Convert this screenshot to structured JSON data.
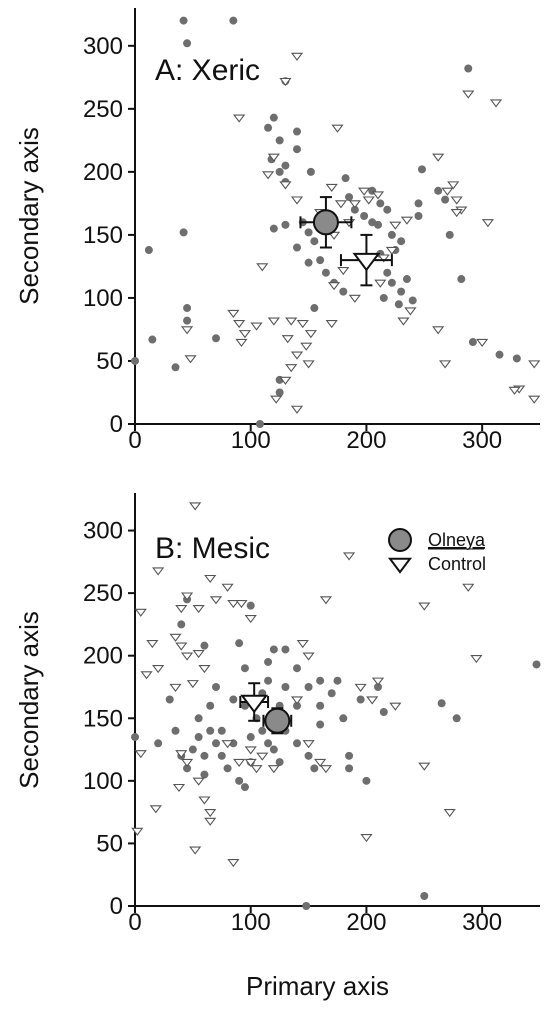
{
  "chart_data": [
    {
      "type": "scatter",
      "title": "A: Xeric",
      "xlabel": "",
      "ylabel": "Secondary axis",
      "xlim": [
        0,
        350
      ],
      "ylim": [
        0,
        330
      ],
      "xticks": [
        0,
        100,
        200,
        300
      ],
      "yticks": [
        0,
        50,
        100,
        150,
        200,
        250,
        300
      ],
      "grid": false,
      "series": [
        {
          "marker": "filled-circle",
          "color": "#6e6e6e",
          "points": [
            [
              42,
              320
            ],
            [
              85,
              320
            ],
            [
              45,
              302
            ],
            [
              130,
              272
            ],
            [
              288,
              282
            ],
            [
              12,
              138
            ],
            [
              42,
              152
            ],
            [
              45,
              92
            ],
            [
              45,
              82
            ],
            [
              15,
              67
            ],
            [
              35,
              45
            ],
            [
              0,
              50
            ],
            [
              70,
              68
            ],
            [
              108,
              0
            ],
            [
              125,
              35
            ],
            [
              125,
              25
            ],
            [
              115,
              235
            ],
            [
              120,
              243
            ],
            [
              125,
              225
            ],
            [
              118,
              210
            ],
            [
              130,
              205
            ],
            [
              140,
              232
            ],
            [
              140,
              218
            ],
            [
              125,
              200
            ],
            [
              130,
              192
            ],
            [
              152,
              200
            ],
            [
              120,
              155
            ],
            [
              130,
              158
            ],
            [
              145,
              160
            ],
            [
              150,
              152
            ],
            [
              155,
              145
            ],
            [
              140,
              140
            ],
            [
              150,
              128
            ],
            [
              160,
              130
            ],
            [
              165,
              120
            ],
            [
              172,
              112
            ],
            [
              180,
              105
            ],
            [
              155,
              92
            ],
            [
              182,
              195
            ],
            [
              185,
              180
            ],
            [
              190,
              170
            ],
            [
              198,
              165
            ],
            [
              205,
              160
            ],
            [
              210,
              158
            ],
            [
              212,
              175
            ],
            [
              218,
              170
            ],
            [
              205,
              185
            ],
            [
              222,
              150
            ],
            [
              230,
              145
            ],
            [
              225,
              138
            ],
            [
              212,
              135
            ],
            [
              218,
              120
            ],
            [
              222,
              112
            ],
            [
              230,
              105
            ],
            [
              235,
              115
            ],
            [
              228,
              95
            ],
            [
              240,
              98
            ],
            [
              245,
              165
            ],
            [
              245,
              175
            ],
            [
              248,
              202
            ],
            [
              262,
              185
            ],
            [
              268,
              178
            ],
            [
              272,
              150
            ],
            [
              282,
              115
            ],
            [
              292,
              65
            ],
            [
              315,
              55
            ],
            [
              330,
              52
            ],
            [
              198,
              132
            ],
            [
              215,
              100
            ]
          ]
        },
        {
          "marker": "open-triangle",
          "color": "#555555",
          "points": [
            [
              140,
              292
            ],
            [
              130,
              272
            ],
            [
              90,
              243
            ],
            [
              175,
              235
            ],
            [
              120,
              212
            ],
            [
              115,
              198
            ],
            [
              130,
              190
            ],
            [
              140,
              178
            ],
            [
              170,
              188
            ],
            [
              160,
              168
            ],
            [
              178,
              175
            ],
            [
              190,
              175
            ],
            [
              172,
              150
            ],
            [
              185,
              160
            ],
            [
              198,
              185
            ],
            [
              202,
              178
            ],
            [
              210,
              182
            ],
            [
              225,
              158
            ],
            [
              235,
              162
            ],
            [
              222,
              138
            ],
            [
              215,
              132
            ],
            [
              212,
              112
            ],
            [
              238,
              90
            ],
            [
              232,
              82
            ],
            [
              262,
              212
            ],
            [
              270,
              185
            ],
            [
              275,
              190
            ],
            [
              278,
              178
            ],
            [
              282,
              170
            ],
            [
              278,
              168
            ],
            [
              288,
              262
            ],
            [
              312,
              255
            ],
            [
              305,
              160
            ],
            [
              262,
              75
            ],
            [
              268,
              48
            ],
            [
              300,
              65
            ],
            [
              345,
              48
            ],
            [
              332,
              28
            ],
            [
              328,
              27
            ],
            [
              345,
              20
            ],
            [
              85,
              88
            ],
            [
              90,
              80
            ],
            [
              95,
              72
            ],
            [
              105,
              78
            ],
            [
              45,
              75
            ],
            [
              48,
              52
            ],
            [
              92,
              65
            ],
            [
              110,
              125
            ],
            [
              120,
              82
            ],
            [
              135,
              82
            ],
            [
              132,
              68
            ],
            [
              145,
              80
            ],
            [
              148,
              62
            ],
            [
              152,
              72
            ],
            [
              140,
              55
            ],
            [
              135,
              45
            ],
            [
              130,
              35
            ],
            [
              140,
              12
            ],
            [
              122,
              20
            ],
            [
              150,
              48
            ],
            [
              170,
              80
            ],
            [
              172,
              110
            ],
            [
              180,
              122
            ],
            [
              190,
              100
            ]
          ]
        },
        {
          "name": "Olneya mean",
          "marker": "large-filled-circle",
          "points": [
            [
              165,
              160
            ]
          ],
          "x_err": [
            22
          ],
          "y_err": [
            20
          ]
        },
        {
          "name": "Control mean",
          "marker": "large-open-triangle",
          "points": [
            [
              200,
              130
            ]
          ],
          "x_err": [
            22
          ],
          "y_err": [
            20
          ]
        }
      ]
    },
    {
      "type": "scatter",
      "title": "B: Mesic",
      "xlabel": "Primary axis",
      "ylabel": "Secondary axis",
      "xlim": [
        0,
        350
      ],
      "ylim": [
        0,
        330
      ],
      "xticks": [
        0,
        100,
        200,
        300
      ],
      "yticks": [
        0,
        50,
        100,
        150,
        200,
        250,
        300
      ],
      "grid": false,
      "legend": {
        "position": "top-right",
        "entries": [
          {
            "label": "Olneya",
            "marker": "large-filled-circle",
            "underline": true
          },
          {
            "label": "Control",
            "marker": "large-open-triangle"
          }
        ]
      },
      "series": [
        {
          "marker": "filled-circle",
          "color": "#6e6e6e",
          "points": [
            [
              0,
              135
            ],
            [
              20,
              130
            ],
            [
              30,
              165
            ],
            [
              35,
              140
            ],
            [
              40,
              120
            ],
            [
              45,
              110
            ],
            [
              50,
              125
            ],
            [
              55,
              135
            ],
            [
              60,
              120
            ],
            [
              60,
              105
            ],
            [
              65,
              140
            ],
            [
              70,
              130
            ],
            [
              75,
              120
            ],
            [
              80,
              110
            ],
            [
              85,
              130
            ],
            [
              90,
              100
            ],
            [
              95,
              95
            ],
            [
              100,
              115
            ],
            [
              100,
              135
            ],
            [
              105,
              150
            ],
            [
              110,
              140
            ],
            [
              115,
              130
            ],
            [
              120,
              125
            ],
            [
              125,
              115
            ],
            [
              125,
              160
            ],
            [
              130,
              140
            ],
            [
              140,
              130
            ],
            [
              150,
              120
            ],
            [
              155,
              110
            ],
            [
              160,
              145
            ],
            [
              160,
              160
            ],
            [
              170,
              170
            ],
            [
              175,
              180
            ],
            [
              180,
              150
            ],
            [
              185,
              120
            ],
            [
              185,
              110
            ],
            [
              195,
              165
            ],
            [
              200,
              100
            ],
            [
              210,
              175
            ],
            [
              215,
              155
            ],
            [
              160,
              180
            ],
            [
              130,
              175
            ],
            [
              110,
              170
            ],
            [
              85,
              165
            ],
            [
              95,
              190
            ],
            [
              115,
              195
            ],
            [
              120,
              205
            ],
            [
              140,
              190
            ],
            [
              100,
              240
            ],
            [
              45,
              245
            ],
            [
              40,
              225
            ],
            [
              60,
              208
            ],
            [
              148,
              0
            ],
            [
              250,
              8
            ],
            [
              265,
              162
            ],
            [
              278,
              150
            ],
            [
              347,
              193
            ],
            [
              130,
              205
            ],
            [
              90,
              210
            ],
            [
              65,
              160
            ],
            [
              75,
              140
            ],
            [
              140,
              160
            ],
            [
              150,
              175
            ],
            [
              115,
              180
            ],
            [
              95,
              160
            ],
            [
              70,
              175
            ],
            [
              55,
              150
            ]
          ]
        },
        {
          "marker": "open-triangle",
          "color": "#555555",
          "points": [
            [
              52,
              320
            ],
            [
              20,
              268
            ],
            [
              65,
              262
            ],
            [
              80,
              255
            ],
            [
              45,
              248
            ],
            [
              40,
              238
            ],
            [
              55,
              238
            ],
            [
              70,
              245
            ],
            [
              85,
              242
            ],
            [
              92,
              242
            ],
            [
              100,
              230
            ],
            [
              35,
              215
            ],
            [
              40,
              208
            ],
            [
              45,
              200
            ],
            [
              55,
              202
            ],
            [
              50,
              178
            ],
            [
              35,
              175
            ],
            [
              5,
              235
            ],
            [
              15,
              210
            ],
            [
              20,
              190
            ],
            [
              60,
              190
            ],
            [
              10,
              185
            ],
            [
              5,
              122
            ],
            [
              18,
              78
            ],
            [
              40,
              122
            ],
            [
              38,
              95
            ],
            [
              45,
              115
            ],
            [
              55,
              100
            ],
            [
              60,
              85
            ],
            [
              65,
              75
            ],
            [
              65,
              68
            ],
            [
              52,
              45
            ],
            [
              85,
              35
            ],
            [
              100,
              125
            ],
            [
              100,
              115
            ],
            [
              105,
              110
            ],
            [
              110,
              120
            ],
            [
              120,
              110
            ],
            [
              150,
              130
            ],
            [
              145,
              210
            ],
            [
              150,
              200
            ],
            [
              165,
              245
            ],
            [
              185,
              280
            ],
            [
              160,
              115
            ],
            [
              165,
              110
            ],
            [
              200,
              55
            ],
            [
              210,
              180
            ],
            [
              225,
              160
            ],
            [
              250,
              240
            ],
            [
              250,
              112
            ],
            [
              288,
              255
            ],
            [
              295,
              198
            ],
            [
              272,
              75
            ],
            [
              195,
              175
            ],
            [
              205,
              165
            ],
            [
              2,
              60
            ],
            [
              80,
              130
            ],
            [
              90,
              115
            ],
            [
              140,
              165
            ]
          ]
        },
        {
          "name": "Olneya mean",
          "marker": "large-filled-circle",
          "points": [
            [
              123,
              148
            ]
          ],
          "x_err": [
            12
          ],
          "y_err": [
            10
          ]
        },
        {
          "name": "Control mean",
          "marker": "large-open-triangle",
          "points": [
            [
              103,
              163
            ]
          ],
          "x_err": [
            12
          ],
          "y_err": [
            15
          ]
        }
      ]
    }
  ]
}
